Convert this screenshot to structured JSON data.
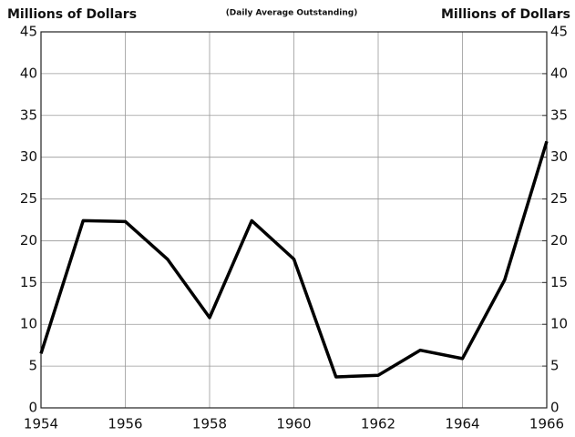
{
  "chart_data": {
    "type": "line",
    "ylabel": "Millions of Dollars",
    "y2label": "Millions of Dollars",
    "subtitle": "(Daily Average Outstanding)",
    "x": [
      1954,
      1955,
      1956,
      1957,
      1958,
      1959,
      1960,
      1961,
      1962,
      1963,
      1964,
      1965,
      1966
    ],
    "series": [
      {
        "color": "#000000",
        "values": [
          6.5,
          22.4,
          22.3,
          17.8,
          10.8,
          22.4,
          17.8,
          3.7,
          3.9,
          6.9,
          5.9,
          15.3,
          31.9
        ]
      }
    ],
    "xlim": [
      1954,
      1966
    ],
    "xticks": [
      1954,
      1956,
      1958,
      1960,
      1962,
      1964,
      1966
    ],
    "ylim": [
      0,
      45
    ],
    "yticks": [
      0,
      5,
      10,
      15,
      20,
      25,
      30,
      35,
      40,
      45
    ],
    "y2lim": [
      0,
      45
    ],
    "y2ticks": [
      0,
      5,
      10,
      15,
      20,
      25,
      30,
      35,
      40,
      45
    ],
    "grid": true
  }
}
